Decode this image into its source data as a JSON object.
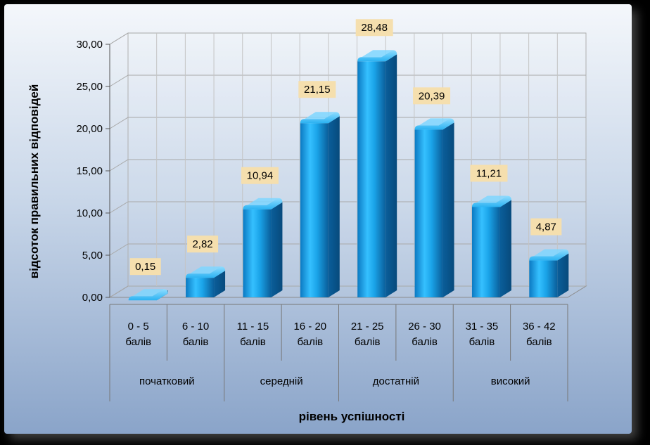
{
  "chart_data": {
    "type": "bar",
    "ylabel": "відсоток правильних відповідей",
    "xlabel": "рівень успішності",
    "ylim": [
      0,
      30
    ],
    "y_ticks": [
      "0,00",
      "5,00",
      "10,00",
      "15,00",
      "20,00",
      "25,00",
      "30,00"
    ],
    "grid": true,
    "categories": [
      {
        "line1": "0 - 5",
        "line2": "балів"
      },
      {
        "line1": "6 - 10",
        "line2": "балів"
      },
      {
        "line1": "11 - 15",
        "line2": "балів"
      },
      {
        "line1": "16 - 20",
        "line2": "балів"
      },
      {
        "line1": "21 - 25",
        "line2": "балів"
      },
      {
        "line1": "26 - 30",
        "line2": "балів"
      },
      {
        "line1": "31 - 35",
        "line2": "балів"
      },
      {
        "line1": "36 - 42",
        "line2": "балів"
      }
    ],
    "values": [
      0.15,
      2.82,
      10.94,
      21.15,
      28.48,
      20.39,
      11.21,
      4.87
    ],
    "data_labels": [
      "0,15",
      "2,82",
      "10,94",
      "21,15",
      "28,48",
      "20,39",
      "11,21",
      "4,87"
    ],
    "groups": [
      {
        "label": "початковий",
        "span": 2
      },
      {
        "label": "середній",
        "span": 2
      },
      {
        "label": "достатній",
        "span": 2
      },
      {
        "label": "високий",
        "span": 2
      }
    ],
    "colors": {
      "bar": "#1aa3e8",
      "bar_dark": "#0d6fb0",
      "bar_light": "#8fdcff",
      "label_bg": "#f5dfae"
    }
  }
}
